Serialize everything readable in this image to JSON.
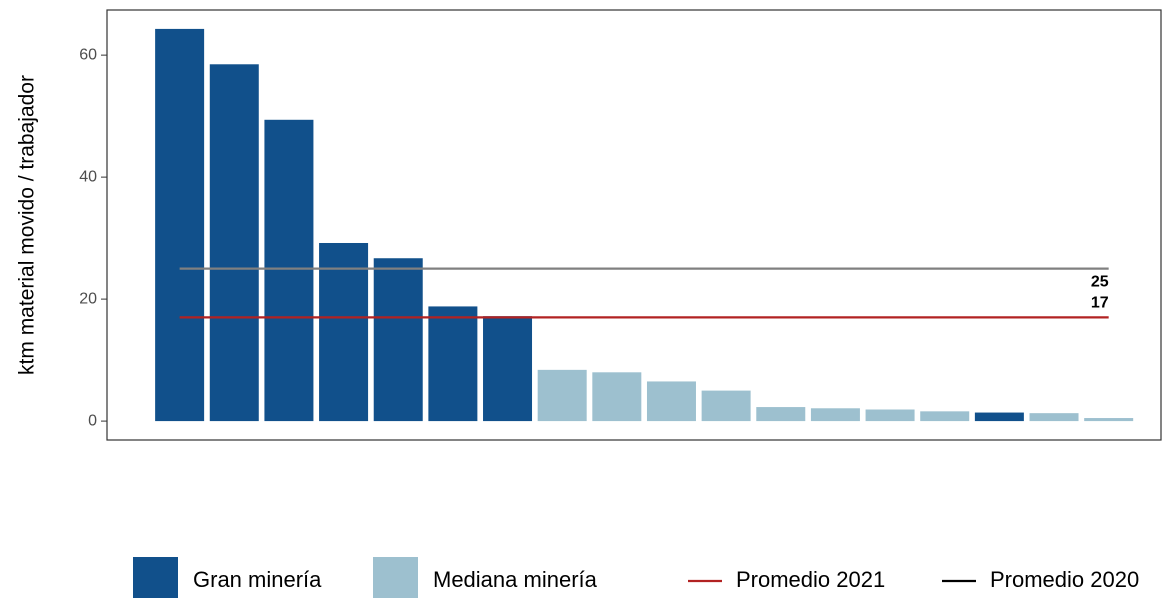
{
  "chart_data": {
    "type": "bar",
    "y_label": "ktm material movido / trabajador",
    "categories": [
      null,
      null,
      null,
      null,
      null,
      null,
      null,
      null,
      null,
      null,
      null,
      null,
      null,
      null,
      null,
      null,
      null,
      null
    ],
    "series": [
      {
        "name": "Gran minería",
        "color": "#11508b",
        "values": [
          64.3,
          58.5,
          49.4,
          29.2,
          26.7,
          18.8,
          17.2,
          null,
          null,
          null,
          null,
          null,
          null,
          null,
          null,
          1.4,
          null,
          null
        ]
      },
      {
        "name": "Mediana minería",
        "color": "#9dc0cf",
        "values": [
          null,
          null,
          null,
          null,
          null,
          null,
          null,
          8.4,
          8.0,
          6.5,
          5.0,
          2.3,
          2.1,
          1.9,
          1.6,
          null,
          1.3,
          0.5
        ]
      }
    ],
    "hlines": [
      {
        "name": "Promedio 2021",
        "value": 17,
        "color": "#b22222",
        "legend_color": "#b22222"
      },
      {
        "name": "Promedio 2020",
        "value": 25,
        "color": "#808080",
        "legend_color": "#000000"
      }
    ],
    "ylim": [
      -3.1,
      67.4
    ],
    "yticks": [
      0,
      20,
      40,
      60
    ],
    "grid": false
  }
}
